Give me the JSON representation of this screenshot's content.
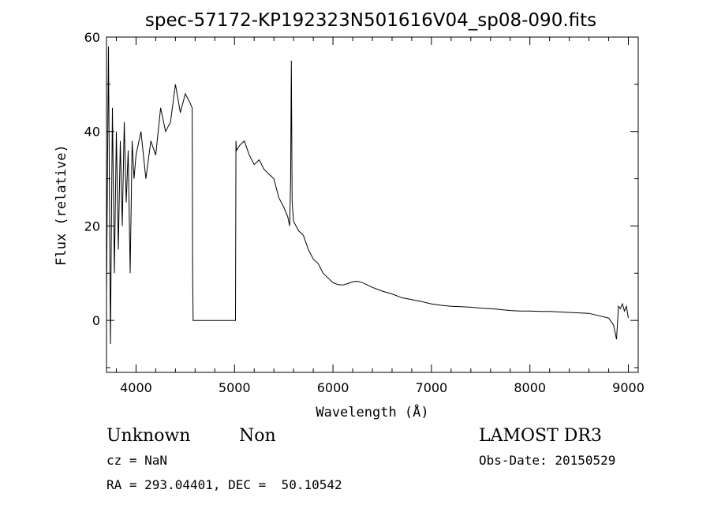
{
  "chart_data": {
    "type": "line",
    "title": "spec-57172-KP192323N501616V04_sp08-090.fits",
    "xlabel": "Wavelength (Å)",
    "ylabel": "Flux (relative)",
    "xlim": [
      3700,
      9100
    ],
    "ylim": [
      -11,
      60
    ],
    "xticks": [
      4000,
      5000,
      6000,
      7000,
      8000,
      9000
    ],
    "yticks": [
      0,
      20,
      40,
      60
    ],
    "grid": false,
    "series": [
      {
        "x": [
          3700,
          3720,
          3740,
          3760,
          3780,
          3800,
          3820,
          3840,
          3860,
          3880,
          3900,
          3920,
          3940,
          3960,
          3980,
          4000,
          4050,
          4100,
          4150,
          4200,
          4250,
          4300,
          4350,
          4400,
          4450,
          4500,
          4550,
          4570,
          4575,
          4580,
          5010,
          5015,
          5020,
          5050,
          5100,
          5150,
          5200,
          5250,
          5300,
          5350,
          5400,
          5450,
          5500,
          5540,
          5560,
          5570,
          5577,
          5585,
          5600,
          5650,
          5700,
          5750,
          5800,
          5850,
          5900,
          5950,
          6000,
          6050,
          6100,
          6150,
          6200,
          6250,
          6300,
          6350,
          6400,
          6500,
          6600,
          6700,
          6800,
          6900,
          7000,
          7100,
          7200,
          7300,
          7400,
          7500,
          7600,
          7700,
          7800,
          7900,
          8000,
          8100,
          8200,
          8300,
          8400,
          8500,
          8600,
          8700,
          8800,
          8850,
          8880,
          8900,
          8920,
          8940,
          8960,
          8980,
          9000
        ],
        "values": [
          5,
          58,
          -5,
          45,
          10,
          40,
          15,
          38,
          20,
          42,
          25,
          36,
          10,
          38,
          30,
          35,
          40,
          30,
          38,
          35,
          45,
          40,
          42,
          50,
          44,
          48,
          46,
          45,
          10,
          0,
          0,
          38,
          36,
          37,
          38,
          35,
          33,
          34,
          32,
          31,
          30,
          26,
          24,
          22,
          20,
          30,
          55,
          25,
          21,
          19,
          18,
          15,
          13,
          12,
          10,
          9,
          8,
          7.6,
          7.5,
          7.8,
          8.2,
          8.3,
          8,
          7.5,
          7,
          6.2,
          5.6,
          4.8,
          4.4,
          4,
          3.5,
          3.2,
          3,
          2.9,
          2.8,
          2.6,
          2.5,
          2.3,
          2.1,
          2,
          2,
          1.9,
          1.9,
          1.8,
          1.7,
          1.6,
          1.5,
          1,
          0.5,
          -1,
          -4,
          3,
          2.5,
          3.5,
          2,
          3,
          0.5
        ]
      }
    ]
  },
  "info": {
    "object_class": "Unknown",
    "object_subclass": "Non",
    "survey": "LAMOST DR3",
    "redshift": "cz = NaN",
    "obs_date": "Obs-Date: 20150529",
    "coords": "RA = 293.04401, DEC =  50.10542"
  }
}
